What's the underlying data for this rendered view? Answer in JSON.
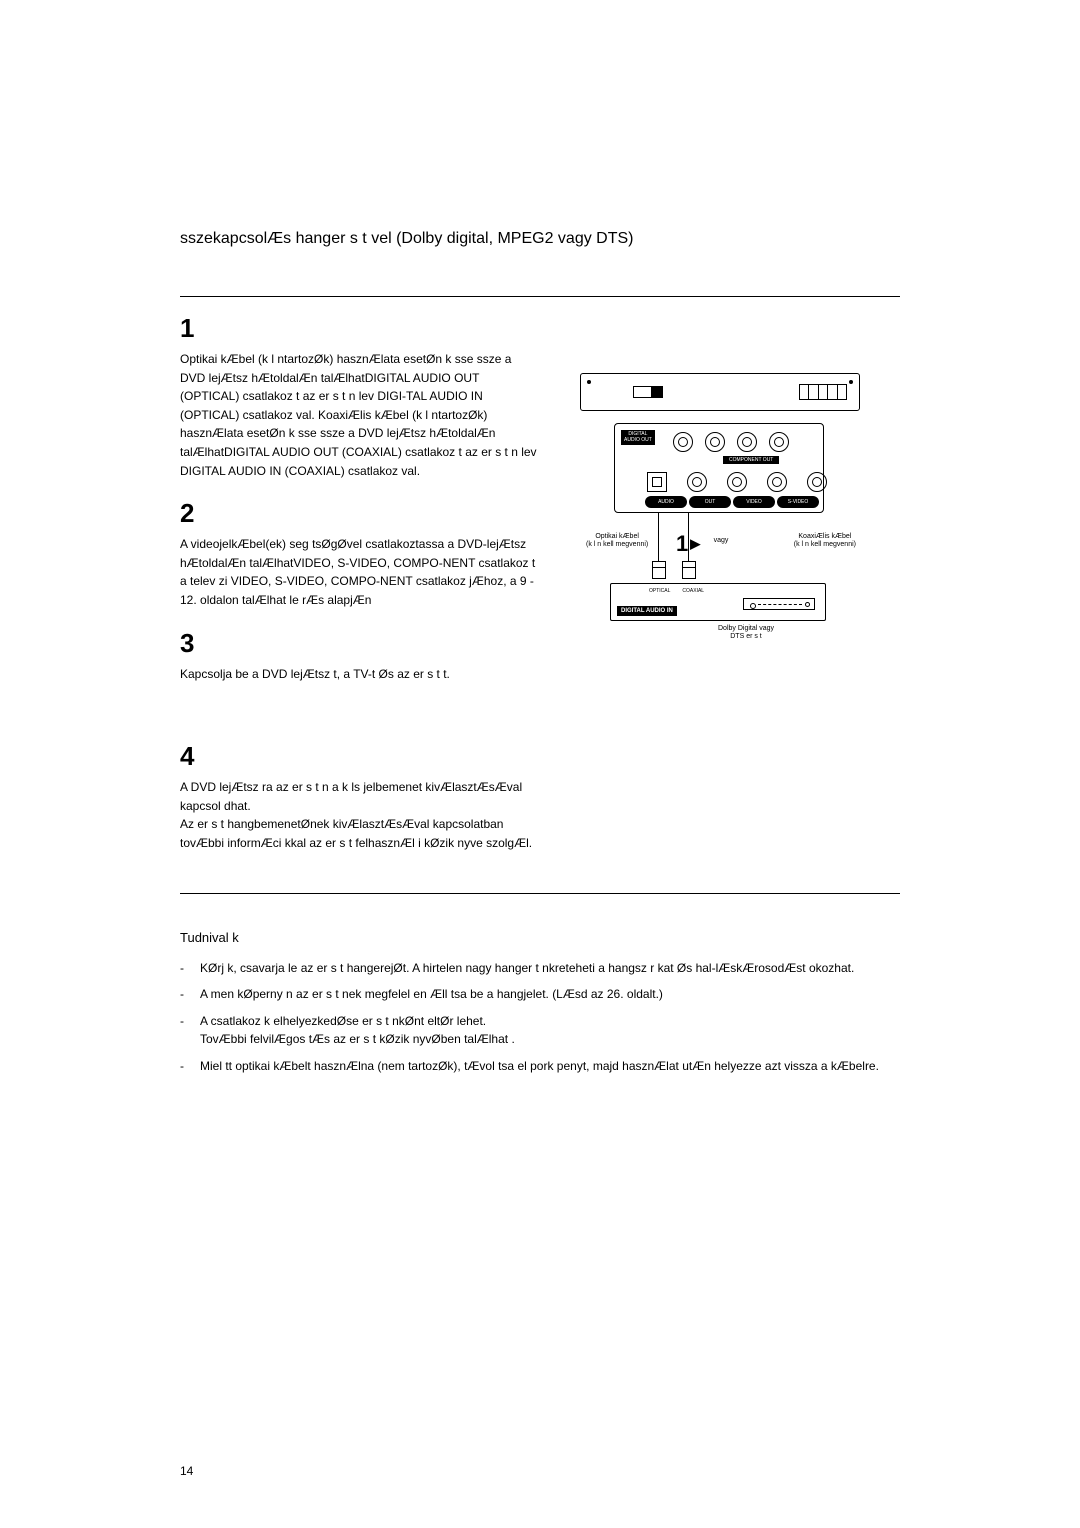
{
  "title": "sszekapcsolÆs hanger s t vel (Dolby digital, MPEG2 vagy DTS)",
  "steps": {
    "s1": {
      "num": "1",
      "text": "Optikai kÆbel (k l ntartozØk) hasznÆlata esetØn k sse   ssze a DVD lejÆtsz   hÆtoldalÆn talÆlhatDIGITAL AUDIO OUT (OPTICAL) csatlakoz t az er s t n lev      DIGI-TAL AUDIO IN (OPTICAL)  csatlakoz val. KoaxiÆlis kÆbel (k l ntartozØk) hasznÆlata esetØn k sse   ssze a DVD lejÆtsz   hÆtoldalÆn talÆlhatDIGITAL AUDIO OUT (COAXIAL)  csatlakoz t az er s t n lev      DIGITAL AUDIO IN (COAXIAL)  csatlakoz val."
    },
    "s2": {
      "num": "2",
      "text": "A videojelkÆbel(ek) seg tsØgØvel csatlakoztassa a DVD-lejÆtsz   hÆtoldalÆn talÆlhatVIDEO, S-VIDEO, COMPO-NENT  csatlakoz t a telev zi    VIDEO, S-VIDEO, COMPO-NENT  csatlakoz jÆhoz, a 9 - 12. oldalon talÆlhat  le rÆs alapjÆn"
    },
    "s3": {
      "num": "3",
      "text": "Kapcsolja be a DVD lejÆtsz t, a TV-t Øs az er s t t."
    },
    "s4": {
      "num": "4",
      "text": "A DVD lejÆtsz ra az er s t n a k ls   jelbemenet kivÆlasztÆsÆval kapcsol dhat.\nAz er s t   hangbemenetØnek kivÆlasztÆsÆval kapcsolatban tovÆbbi informÆci kkal az er s t   felhasznÆl i kØzik nyve szolgÆl."
    }
  },
  "notes": {
    "title": "Tudnival k",
    "items": [
      "KØrj k, csavarja le az er s t   hangerejØt. A hirtelen nagy hanger   t nkreteheti a hangsz r kat Øs hal-lÆskÆrosodÆst okozhat.",
      "A men kØperny n az er s t nek megfelel en Æll tsa be a hangjelet. (LÆsd az 26. oldalt.)",
      "A csatlakoz k elhelyezkedØse er s t nkØnt eltØr   lehet.\nTovÆbbi felvilÆgos tÆs az er s t   kØzik nyvØben talÆlhat .",
      "Miel tt optikai kÆbelt hasznÆlna (nem tartozØk), tÆvol tsa el pork penyt, majd hasznÆlat utÆn helyezze azt vissza a kÆbelre."
    ]
  },
  "diagram": {
    "panel_label": "DIGITAL\nAUDIO OUT",
    "component_out": "COMPONENT OUT",
    "strip": [
      "AUDIO",
      "OUT",
      "VIDEO",
      "S-VIDEO"
    ],
    "cable_left": "Optikai kÆbel\n(k l n kell megvenni)",
    "cable_mid": "vagy",
    "cable_right": "KoaxiÆlis kÆbel\n(k l n kell megvenni)",
    "step_num": "1",
    "recv_opt": "OPTICAL",
    "recv_coax": "COAXIAL",
    "recv_in": "DIGITAL AUDIO IN",
    "recv_caption": "Dolby Digital vagy\nDTS er s t"
  },
  "page_number": "14",
  "colors": {
    "text": "#000000",
    "bg": "#ffffff"
  }
}
